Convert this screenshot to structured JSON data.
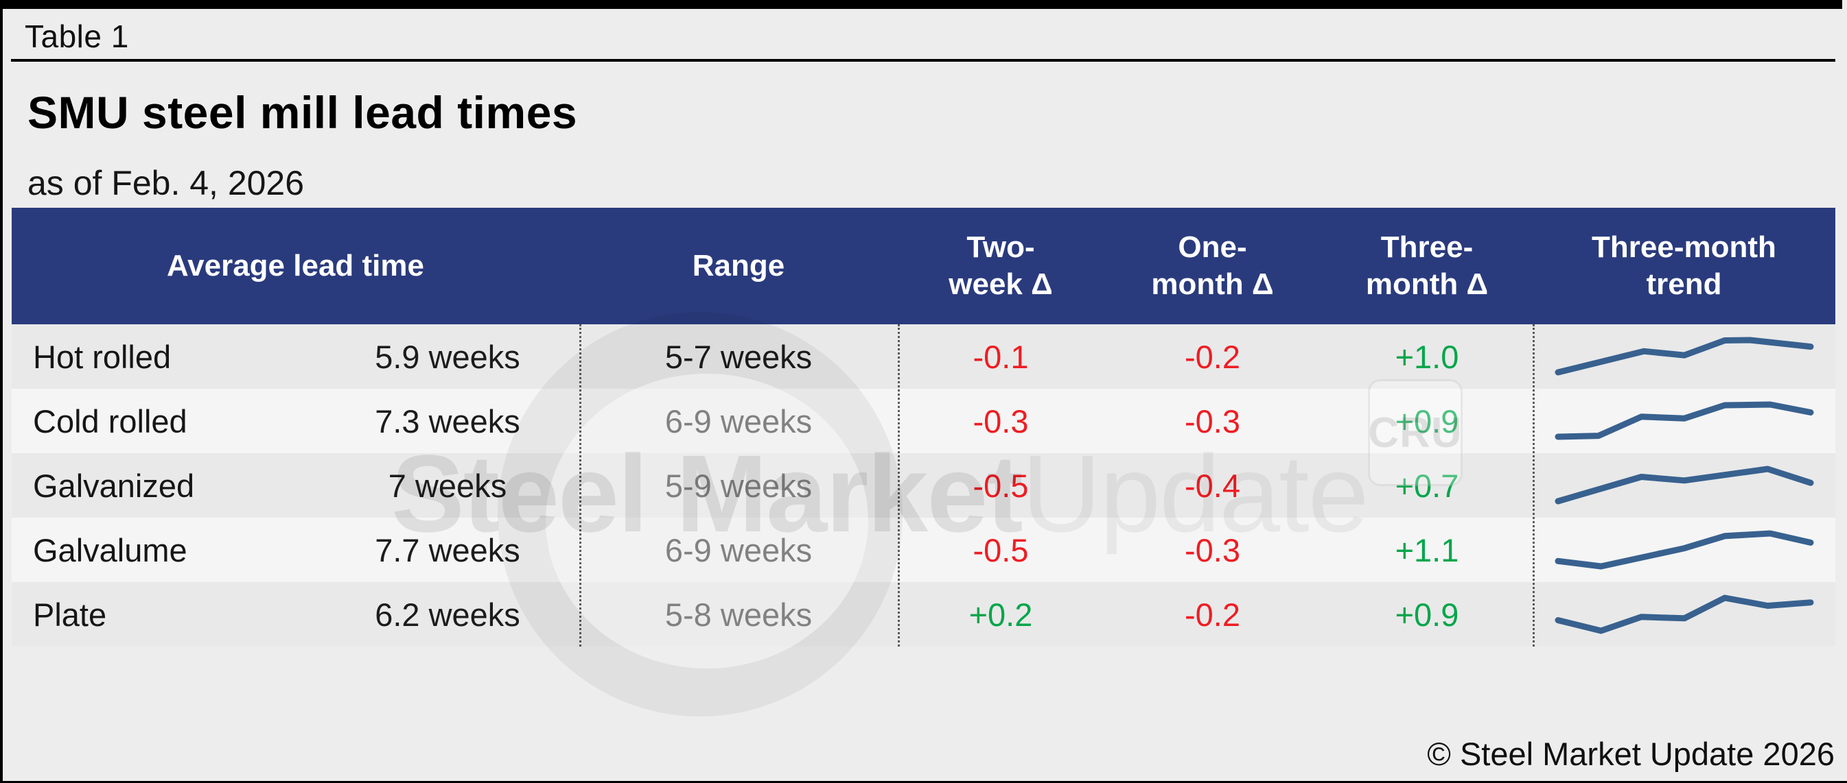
{
  "frame": {
    "table_label": "Table 1"
  },
  "header": {
    "title": "SMU steel mill lead times",
    "subtitle": "as of Feb. 4, 2026"
  },
  "columns": {
    "avg_lead_time": "Average lead time",
    "range": "Range",
    "two_week_line1": "Two-",
    "two_week_line2": "week Δ",
    "one_month_line1": "One-",
    "one_month_line2": "month Δ",
    "three_month_line1": "Three-",
    "three_month_line2": "month Δ",
    "trend_line1": "Three-month",
    "trend_line2": "trend"
  },
  "watermark": {
    "bold_text": "Steel Market",
    "light_text": "Update",
    "badge": "CRU"
  },
  "footer": {
    "copyright": "© Steel Market Update 2026"
  },
  "colors": {
    "header_navy": "#2a3b7d",
    "negative_red": "#ee1d23",
    "positive_green": "#04a64b",
    "sparkline_blue": "#38618f",
    "row_dark": "#e9e9e9",
    "row_light": "#f5f5f5",
    "background": "#ededed"
  },
  "chart_data": {
    "type": "table",
    "title": "SMU steel mill lead times",
    "subtitle": "as of Feb. 4, 2026",
    "columns": [
      "Average lead time",
      "Range",
      "Two-week Δ",
      "One-month Δ",
      "Three-month Δ",
      "Three-month trend"
    ],
    "rows": [
      {
        "product": "Hot rolled",
        "avg": "5.9 weeks",
        "avg_value": 5.9,
        "range": "5-7 weeks",
        "two_week": "-0.1",
        "one_month": "-0.2",
        "three_month": "+1.0",
        "trend": [
          [
            0,
            0.02
          ],
          [
            0.34,
            0.66
          ],
          [
            0.5,
            0.54
          ],
          [
            0.66,
            0.99
          ],
          [
            0.76,
            1.0
          ],
          [
            1,
            0.8
          ]
        ]
      },
      {
        "product": "Cold rolled",
        "avg": "7.3 weeks",
        "avg_value": 7.3,
        "range": "6-9 weeks",
        "two_week": "-0.3",
        "one_month": "-0.3",
        "three_month": "+0.9",
        "trend": [
          [
            0,
            0.02
          ],
          [
            0.16,
            0.05
          ],
          [
            0.33,
            0.63
          ],
          [
            0.5,
            0.58
          ],
          [
            0.66,
            0.98
          ],
          [
            0.84,
            1.0
          ],
          [
            1,
            0.76
          ]
        ]
      },
      {
        "product": "Galvanized",
        "avg": "7 weeks",
        "avg_value": 7.0,
        "range": "5-9 weeks",
        "two_week": "-0.5",
        "one_month": "-0.4",
        "three_month": "+0.7",
        "trend": [
          [
            0,
            0.02
          ],
          [
            0.33,
            0.76
          ],
          [
            0.5,
            0.65
          ],
          [
            0.83,
            1.0
          ],
          [
            1,
            0.58
          ]
        ]
      },
      {
        "product": "Galvalume",
        "avg": "7.7 weeks",
        "avg_value": 7.7,
        "range": "6-9 weeks",
        "two_week": "-0.5",
        "one_month": "-0.3",
        "three_month": "+1.1",
        "trend": [
          [
            0,
            0.16
          ],
          [
            0.17,
            0.0
          ],
          [
            0.5,
            0.55
          ],
          [
            0.66,
            0.92
          ],
          [
            0.84,
            1.0
          ],
          [
            1,
            0.72
          ]
        ]
      },
      {
        "product": "Plate",
        "avg": "6.2 weeks",
        "avg_value": 6.2,
        "range": "5-8 weeks",
        "two_week": "+0.2",
        "one_month": "-0.2",
        "three_month": "+0.9",
        "trend": [
          [
            0,
            0.32
          ],
          [
            0.17,
            0.0
          ],
          [
            0.33,
            0.42
          ],
          [
            0.5,
            0.38
          ],
          [
            0.66,
            1.0
          ],
          [
            0.83,
            0.76
          ],
          [
            1,
            0.86
          ]
        ]
      }
    ]
  }
}
